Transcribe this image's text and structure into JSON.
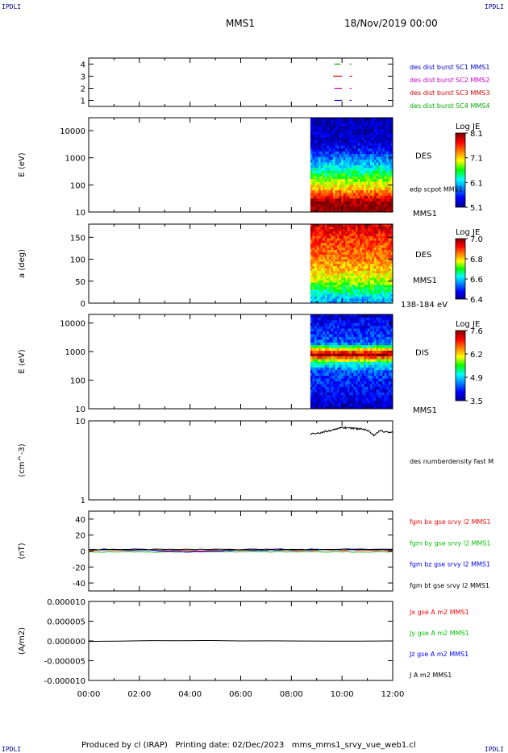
{
  "header": {
    "corner_tl": "IPDLI",
    "corner_tr": "IPDLI",
    "corner_bl": "IPDLI",
    "corner_br": "IPDLI",
    "title": "MMS1",
    "date": "18/Nov/2019 00:00"
  },
  "footer": {
    "text": "Produced by cl (IRAP)   Printing date: 02/Dec/2023   mms_mms1_srvy_vue_web1.cl"
  },
  "colors": {
    "mms1": "#0000cc",
    "mms2": "#cc00cc",
    "mms3": "#cc0000",
    "mms4": "#00aa00",
    "bx": "#ff0000",
    "by": "#00c000",
    "bz": "#0000ff",
    "bt": "#000000"
  },
  "chart_data": [
    {
      "type": "timeline",
      "ylabel": "",
      "yticks": [
        "1",
        "2",
        "3",
        "4"
      ],
      "ylim": [
        0.5,
        4.5
      ],
      "legend": [
        "des dist burst SC1 MMS1",
        "des dist burst SC2 MMS2",
        "des dist burst SC3 MMS3",
        "des dist burst SC4 MMS4"
      ],
      "series": [
        {
          "name": "des dist burst SC1 MMS1",
          "level": 1,
          "segments": [
            [
              9.7,
              10.0
            ],
            [
              10.3,
              10.37
            ]
          ]
        },
        {
          "name": "des dist burst SC2 MMS2",
          "level": 2,
          "segments": [
            [
              9.7,
              10.0
            ],
            [
              10.3,
              10.37
            ]
          ]
        },
        {
          "name": "des dist burst SC3 MMS3",
          "level": 3,
          "segments": [
            [
              9.65,
              10.0
            ],
            [
              10.3,
              10.4
            ]
          ]
        },
        {
          "name": "des dist burst SC4 MMS4",
          "level": 4,
          "segments": [
            [
              9.7,
              9.95
            ],
            [
              10.3,
              10.37
            ]
          ]
        }
      ]
    },
    {
      "type": "heatmap",
      "ylabel": "E (eV)",
      "yscale": "log",
      "ylim": [
        10,
        30000
      ],
      "yticks": [
        "10",
        "100",
        "1000",
        "10000"
      ],
      "data_start_hour": 8.75,
      "label": "DES",
      "sublabel": "edp scpot MMS1",
      "bottom_label": "MMS1",
      "colorbar": {
        "title": "Log JE",
        "min": 5.1,
        "max": 8.1,
        "ticks": [
          "8.1",
          "7.1",
          "6.1",
          "5.1"
        ]
      },
      "profile": [
        [
          10,
          8.1
        ],
        [
          25,
          8.0
        ],
        [
          45,
          7.5
        ],
        [
          80,
          7.1
        ],
        [
          150,
          6.8
        ],
        [
          300,
          6.4
        ],
        [
          700,
          6.0
        ],
        [
          1500,
          5.6
        ],
        [
          4000,
          5.3
        ],
        [
          30000,
          5.2
        ]
      ]
    },
    {
      "type": "heatmap",
      "ylabel": "a (deg)",
      "yscale": "linear",
      "ylim": [
        0,
        180
      ],
      "yticks": [
        "0",
        "50",
        "100",
        "150"
      ],
      "data_start_hour": 8.75,
      "label": "DES",
      "sublabel": "MMS1",
      "bottom_label": "138-184 eV",
      "colorbar": {
        "title": "Log JE",
        "min": 6.4,
        "max": 7.0,
        "ticks": [
          "7.0",
          "6.8",
          "6.6",
          "6.4"
        ]
      },
      "profile": [
        [
          0,
          6.55
        ],
        [
          50,
          6.75
        ],
        [
          100,
          6.85
        ],
        [
          150,
          6.9
        ],
        [
          180,
          6.95
        ]
      ]
    },
    {
      "type": "heatmap",
      "ylabel": "E (eV)",
      "yscale": "log",
      "ylim": [
        10,
        20000
      ],
      "yticks": [
        "10",
        "100",
        "1000",
        "10000"
      ],
      "data_start_hour": 8.75,
      "label": "DIS",
      "sublabel": "",
      "bottom_label": "MMS1",
      "colorbar": {
        "title": "Log JE",
        "min": 3.5,
        "max": 7.6,
        "ticks": [
          "7.6",
          "6.2",
          "4.9",
          "3.5"
        ]
      },
      "profile": [
        [
          10,
          3.7
        ],
        [
          200,
          4.3
        ],
        [
          400,
          5.2
        ],
        [
          550,
          6.2
        ],
        [
          800,
          7.6
        ],
        [
          1100,
          6.6
        ],
        [
          2000,
          4.4
        ],
        [
          20000,
          3.8
        ]
      ]
    },
    {
      "type": "line",
      "ylabel": "(cm^-3)",
      "yscale": "log",
      "ylim": [
        1,
        10
      ],
      "yticks": [
        "1",
        "10"
      ],
      "legend": [
        "des numberdensity fast M"
      ],
      "series": [
        {
          "name": "des numberdensity fast M",
          "color": "#000000",
          "x": [
            8.75,
            9.0,
            9.25,
            9.5,
            9.75,
            10.0,
            10.25,
            10.5,
            10.75,
            11.0,
            11.25,
            11.5,
            11.75,
            12.0
          ],
          "y": [
            6.8,
            7.0,
            7.2,
            7.5,
            7.9,
            8.3,
            8.1,
            8.0,
            7.9,
            7.6,
            6.5,
            7.5,
            7.2,
            7.1
          ]
        }
      ]
    },
    {
      "type": "line",
      "ylabel": "(nT)",
      "yscale": "linear",
      "ylim": [
        -50,
        50
      ],
      "yticks": [
        "-40",
        "-20",
        "0",
        "20",
        "40"
      ],
      "legend": [
        "fgm bx gse srvy l2 MMS1",
        "fgm by gse srvy l2 MMS1",
        "fgm bz gse srvy l2 MMS1",
        "fgm bt gse srvy l2 MMS1"
      ],
      "series": [
        {
          "name": "fgm bx gse srvy l2 MMS1",
          "color": "#ff0000",
          "x": [
            0,
            2,
            4,
            6,
            8,
            10,
            12
          ],
          "y": [
            1,
            1.2,
            0.8,
            1.1,
            1,
            1.3,
            1
          ]
        },
        {
          "name": "fgm by gse srvy l2 MMS1",
          "color": "#00c000",
          "x": [
            0,
            2,
            4,
            6,
            8,
            10,
            12
          ],
          "y": [
            -0.8,
            -1.2,
            -1,
            -0.9,
            -1.1,
            -1,
            -0.9
          ]
        },
        {
          "name": "fgm bz gse srvy l2 MMS1",
          "color": "#0000ff",
          "x": [
            0,
            2,
            4,
            6,
            8,
            10,
            12
          ],
          "y": [
            1.5,
            1.8,
            -1.2,
            1.2,
            1.6,
            2,
            1.8
          ]
        },
        {
          "name": "fgm bt gse srvy l2 MMS1",
          "color": "#000000",
          "x": [
            0,
            2,
            4,
            6,
            8,
            10,
            12
          ],
          "y": [
            2,
            2.2,
            1.9,
            2.1,
            2,
            2.4,
            2.2
          ]
        }
      ]
    },
    {
      "type": "line",
      "ylabel": "(A/m2)",
      "yscale": "linear",
      "ylim": [
        -1e-05,
        1e-05
      ],
      "yticks": [
        "-0.000010",
        "-0.000005",
        "0.000000",
        "0.000005",
        "0.000010"
      ],
      "legend": [
        "Jx gse A m2 MMS1",
        "Jy gse A m2 MMS1",
        "Jz gse A m2 MMS1",
        "J A m2 MMS1"
      ],
      "series": [
        {
          "name": "J A m2 MMS1",
          "color": "#000000",
          "x": [
            0,
            12
          ],
          "y": [
            0,
            0
          ]
        }
      ]
    }
  ],
  "xaxis": {
    "ticks": [
      "00:00",
      "02:00",
      "04:00",
      "06:00",
      "08:00",
      "10:00",
      "12:00"
    ],
    "xlim": [
      0,
      12
    ]
  }
}
